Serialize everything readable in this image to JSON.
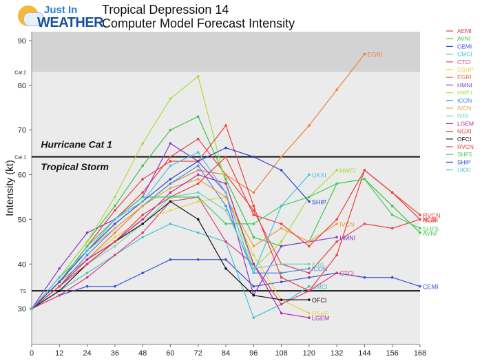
{
  "logo": {
    "line1": "Just In",
    "line2": "WEATHER"
  },
  "title": [
    "Tropical Depression 14",
    "Computer Model Forecast Intensity"
  ],
  "colors": {
    "plot_bg": "#ebebeb",
    "cat2_band": "#d3d3d3",
    "threshold": "#111111"
  },
  "chart_data": {
    "type": "line",
    "ylabel": "Intensity (kt)",
    "x_ticks": [
      0,
      12,
      24,
      36,
      48,
      60,
      72,
      84,
      96,
      108,
      120,
      132,
      144,
      156,
      168
    ],
    "y_ticks": [
      30,
      40,
      50,
      60,
      70,
      80,
      90
    ],
    "xlim": [
      0,
      168
    ],
    "ylim": [
      22,
      92
    ],
    "band": {
      "from": 83,
      "to": 92
    },
    "thresholds": [
      {
        "label": "Cat 2",
        "value": 83
      },
      {
        "label": "Cat 1",
        "value": 64,
        "text": "Hurricane Cat 1"
      },
      {
        "label": "TS",
        "value": 34
      }
    ],
    "region_labels": [
      {
        "text": "Hurricane Cat 1",
        "x": 4,
        "y": 66
      },
      {
        "text": "Tropical Storm",
        "x": 4,
        "y": 61
      }
    ],
    "legend": [
      "AEMI",
      "AVNI",
      "CEMI",
      "CMCI",
      "CTCI",
      "DSHP",
      "EGRI",
      "HMNI",
      "HWFI",
      "ICON",
      "IVCN",
      "IVRI",
      "LGEM",
      "NGXI",
      "OFCI",
      "RVCN",
      "SHF5",
      "SHIP",
      "UKXI"
    ],
    "series": [
      {
        "name": "AEMI",
        "color": "#e8404a",
        "x": [
          0,
          12,
          24,
          36,
          48,
          60,
          72,
          84,
          96,
          108,
          120,
          132,
          144,
          156,
          168
        ],
        "y": [
          30,
          36,
          44,
          50,
          56,
          64,
          68,
          60,
          52,
          40,
          38,
          45,
          49,
          48,
          50
        ]
      },
      {
        "name": "AVNI",
        "color": "#3cc24a",
        "x": [
          0,
          12,
          24,
          36,
          48,
          60,
          72,
          84,
          96,
          108,
          120,
          132,
          144,
          156,
          168
        ],
        "y": [
          30,
          37,
          45,
          53,
          62,
          70,
          73,
          59,
          46,
          44,
          45,
          58,
          59,
          53,
          47
        ]
      },
      {
        "name": "CEMI",
        "color": "#3b4fd6",
        "x": [
          0,
          12,
          24,
          36,
          48,
          60,
          72,
          84,
          96,
          108,
          120,
          132,
          144,
          156,
          168
        ],
        "y": [
          30,
          33,
          35,
          35,
          38,
          41,
          41,
          41,
          35,
          36,
          37,
          38,
          37,
          37,
          35
        ]
      },
      {
        "name": "CMCI",
        "color": "#3fc4c8",
        "x": [
          0,
          12,
          24,
          36,
          48,
          60,
          72,
          84,
          96,
          108,
          120
        ],
        "y": [
          30,
          34,
          38,
          42,
          46,
          49,
          47,
          45,
          28,
          31,
          35
        ]
      },
      {
        "name": "CTCI",
        "color": "#e03a78",
        "x": [
          0,
          12,
          24,
          36,
          48,
          60,
          72,
          84,
          96,
          108,
          120,
          132
        ],
        "y": [
          30,
          33,
          37,
          42,
          47,
          54,
          55,
          45,
          40,
          31,
          34,
          38
        ]
      },
      {
        "name": "DSHP",
        "color": "#e6d23c",
        "x": [
          0,
          12,
          24,
          36,
          48,
          60,
          72,
          84,
          96,
          108,
          120
        ],
        "y": [
          30,
          35,
          41,
          46,
          50,
          52,
          54,
          55,
          42,
          32,
          29
        ]
      },
      {
        "name": "EGRI",
        "color": "#e8823c",
        "x": [
          0,
          12,
          24,
          36,
          48,
          60,
          72,
          84,
          96,
          108,
          120,
          132,
          144
        ],
        "y": [
          30,
          36,
          41,
          47,
          53,
          58,
          61,
          60,
          56,
          64,
          71,
          79,
          87
        ]
      },
      {
        "name": "HMNI",
        "color": "#8a35d0",
        "x": [
          0,
          12,
          24,
          36,
          48,
          60,
          72,
          84,
          96,
          108,
          120,
          132
        ],
        "y": [
          30,
          39,
          47,
          50,
          55,
          67,
          63,
          56,
          33,
          44,
          45,
          46
        ]
      },
      {
        "name": "HWFI",
        "color": "#a8de3a",
        "x": [
          0,
          12,
          24,
          36,
          48,
          60,
          72,
          84,
          96,
          108,
          120,
          132
        ],
        "y": [
          30,
          37,
          45,
          55,
          67,
          77,
          82,
          58,
          39,
          45,
          55,
          61
        ]
      },
      {
        "name": "ICON",
        "color": "#3c8ee8",
        "x": [
          0,
          12,
          24,
          36,
          48,
          60,
          72,
          84,
          96,
          108,
          120
        ],
        "y": [
          30,
          35,
          42,
          48,
          53,
          58,
          62,
          53,
          38,
          38,
          39
        ]
      },
      {
        "name": "IVCN",
        "color": "#f0a030",
        "x": [
          0,
          12,
          24,
          36,
          48,
          60,
          72,
          84,
          96,
          108,
          120,
          132
        ],
        "y": [
          30,
          36,
          43,
          48,
          53,
          57,
          59,
          55,
          44,
          48,
          45,
          49
        ]
      },
      {
        "name": "IVRI",
        "color": "#6ad6b8",
        "x": [
          0,
          12,
          24,
          36,
          48,
          60,
          72,
          84,
          96,
          108,
          120
        ],
        "y": [
          30,
          35,
          40,
          44,
          49,
          55,
          56,
          52,
          39,
          40,
          40
        ]
      },
      {
        "name": "LGEM",
        "color": "#b02ab0",
        "x": [
          0,
          12,
          24,
          36,
          48,
          60,
          72,
          84,
          96,
          108,
          120
        ],
        "y": [
          30,
          35,
          41,
          45,
          50,
          56,
          60,
          58,
          40,
          29,
          28
        ]
      },
      {
        "name": "NGXI",
        "color": "#ee3c3c",
        "x": [
          0,
          12,
          24,
          36,
          48,
          60,
          72,
          84,
          96,
          108,
          120,
          132,
          144,
          156,
          168
        ],
        "y": [
          30,
          36,
          44,
          52,
          59,
          63,
          63,
          71,
          53,
          37,
          34,
          42,
          61,
          56,
          50
        ]
      },
      {
        "name": "OFCI",
        "color": "#111111",
        "x": [
          0,
          12,
          24,
          36,
          48,
          60,
          72,
          84,
          96,
          108,
          120
        ],
        "y": [
          30,
          34,
          40,
          45,
          49,
          54,
          50,
          39,
          33,
          32,
          32
        ]
      },
      {
        "name": "RVCN",
        "color": "#ee3c3c",
        "x": [
          0,
          12,
          24,
          36,
          48,
          60,
          72,
          84,
          96,
          108,
          120,
          132,
          144,
          156,
          168
        ],
        "y": [
          30,
          35,
          40,
          45,
          51,
          55,
          58,
          64,
          51,
          49,
          44,
          50,
          61,
          56,
          51
        ]
      },
      {
        "name": "SHF5",
        "color": "#3ed05a",
        "x": [
          0,
          12,
          24,
          36,
          48,
          60,
          72,
          84,
          96,
          108,
          120,
          132,
          144,
          156,
          168
        ],
        "y": [
          30,
          36,
          44,
          50,
          55,
          55,
          55,
          49,
          49,
          53,
          55,
          58,
          59,
          51,
          48
        ]
      },
      {
        "name": "SHIP",
        "color": "#2f43cc",
        "x": [
          0,
          12,
          24,
          36,
          48,
          60,
          72,
          84,
          96,
          108,
          120
        ],
        "y": [
          30,
          36,
          43,
          49,
          54,
          59,
          63,
          66,
          64,
          61,
          54
        ]
      },
      {
        "name": "UKXI",
        "color": "#48c0e0",
        "x": [
          0,
          12,
          24,
          36,
          48,
          60,
          72,
          84,
          96,
          108,
          120
        ],
        "y": [
          30,
          37,
          43,
          50,
          54,
          62,
          65,
          56,
          38,
          53,
          60
        ]
      }
    ]
  }
}
